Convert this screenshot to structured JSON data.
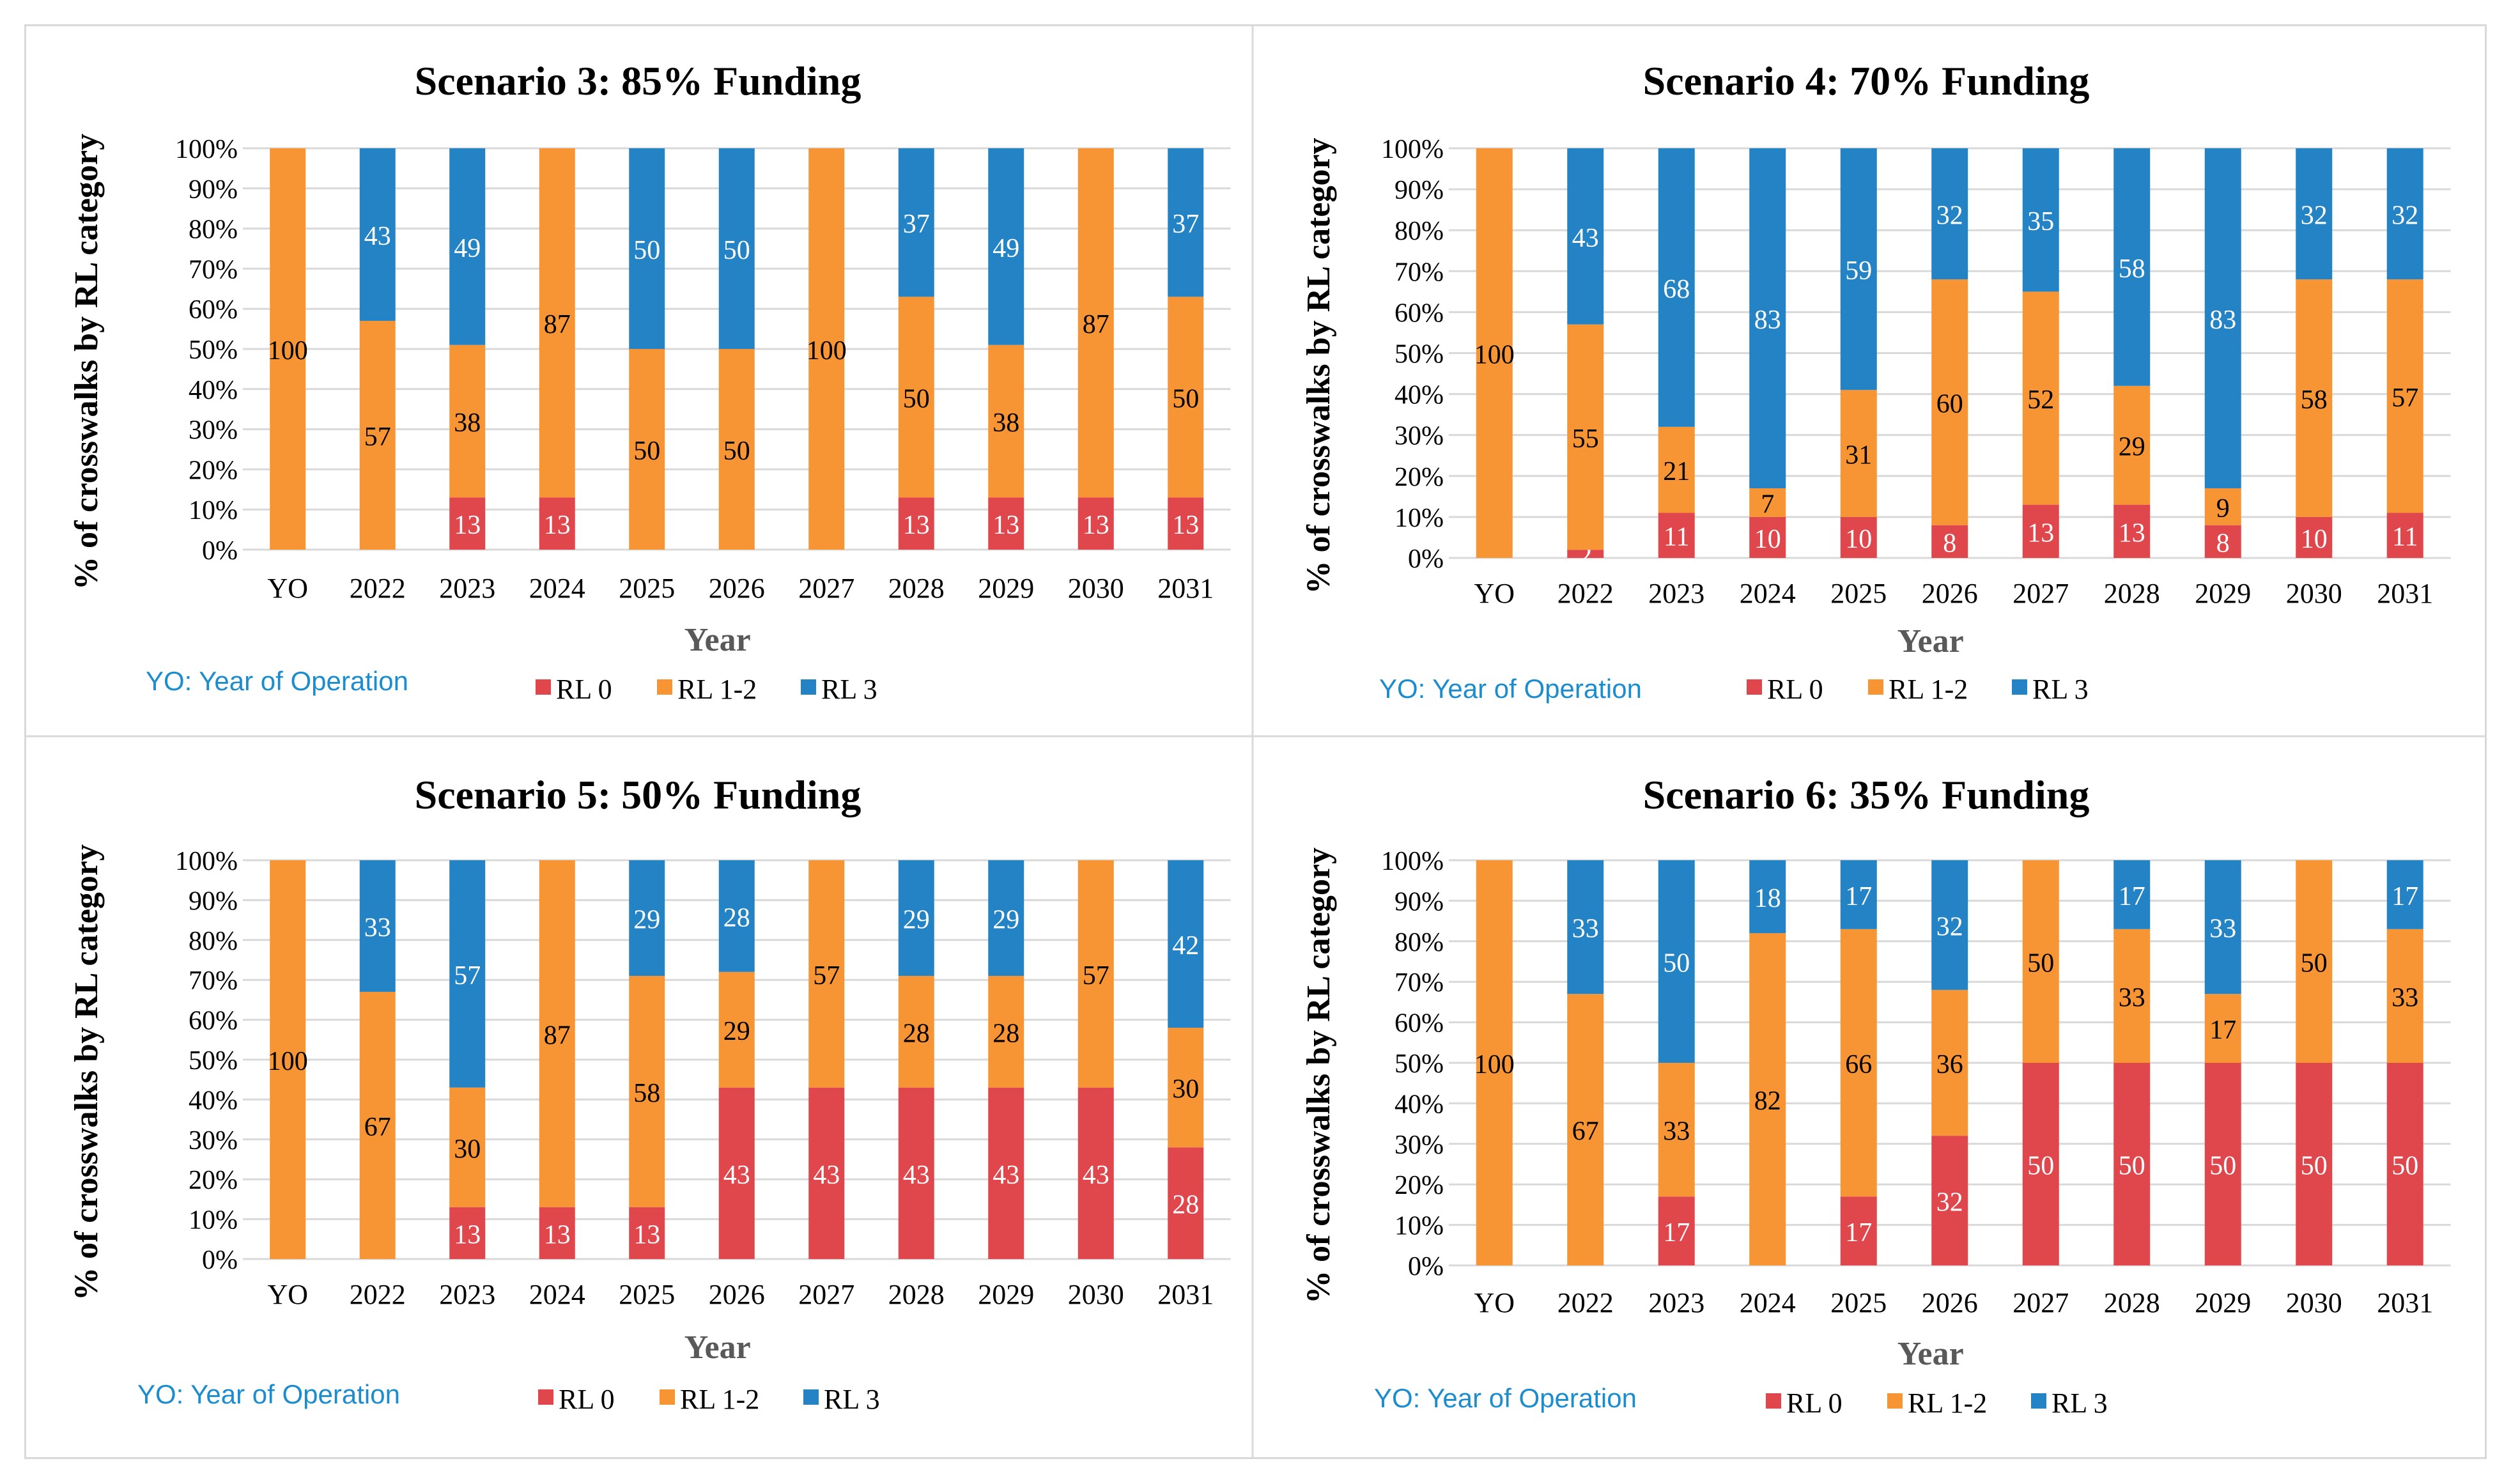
{
  "colors": {
    "rl0": "#E0474C",
    "rl12": "#F79433",
    "rl3": "#2383C5",
    "note": "#1B8DCE",
    "grid": "#D9D9D9",
    "text": "#000000"
  },
  "chart_data": [
    {
      "type": "bar",
      "stacked": true,
      "title": "Scenario 3: 85% Funding",
      "xlabel": "Year",
      "ylabel": "% of crosswalks by RL category",
      "ylim": [
        0,
        100
      ],
      "yticks": [
        "0%",
        "10%",
        "20%",
        "30%",
        "40%",
        "50%",
        "60%",
        "70%",
        "80%",
        "90%",
        "100%"
      ],
      "categories": [
        "YO",
        "2022",
        "2023",
        "2024",
        "2025",
        "2026",
        "2027",
        "2028",
        "2029",
        "2030",
        "2031"
      ],
      "series": [
        {
          "name": "RL 0",
          "values": [
            0,
            0,
            13,
            13,
            0,
            0,
            0,
            13,
            13,
            13,
            13
          ]
        },
        {
          "name": "RL 1-2",
          "values": [
            100,
            57,
            38,
            87,
            50,
            50,
            100,
            50,
            38,
            87,
            50
          ]
        },
        {
          "name": "RL 3",
          "values": [
            0,
            43,
            49,
            0,
            50,
            50,
            0,
            37,
            49,
            0,
            37
          ]
        }
      ],
      "note": "YO: Year of Operation",
      "legend": [
        "RL 0",
        "RL 1-2",
        "RL 3"
      ]
    },
    {
      "type": "bar",
      "stacked": true,
      "title": "Scenario 4: 70% Funding",
      "xlabel": "Year",
      "ylabel": "% of crosswalks by RL category",
      "ylim": [
        0,
        100
      ],
      "yticks": [
        "0%",
        "10%",
        "20%",
        "30%",
        "40%",
        "50%",
        "60%",
        "70%",
        "80%",
        "90%",
        "100%"
      ],
      "categories": [
        "YO",
        "2022",
        "2023",
        "2024",
        "2025",
        "2026",
        "2027",
        "2028",
        "2029",
        "2030",
        "2031"
      ],
      "series": [
        {
          "name": "RL 0",
          "values": [
            0,
            2,
            11,
            10,
            10,
            8,
            13,
            13,
            8,
            10,
            11
          ]
        },
        {
          "name": "RL 1-2",
          "values": [
            100,
            55,
            21,
            7,
            31,
            60,
            52,
            29,
            9,
            58,
            57
          ]
        },
        {
          "name": "RL 3",
          "values": [
            0,
            43,
            68,
            83,
            59,
            32,
            35,
            58,
            83,
            32,
            32
          ]
        }
      ],
      "note": "YO: Year of Operation",
      "legend": [
        "RL 0",
        "RL 1-2",
        "RL 3"
      ]
    },
    {
      "type": "bar",
      "stacked": true,
      "title": "Scenario 5: 50% Funding",
      "xlabel": "Year",
      "ylabel": "% of crosswalks by RL category",
      "ylim": [
        0,
        100
      ],
      "yticks": [
        "0%",
        "10%",
        "20%",
        "30%",
        "40%",
        "50%",
        "60%",
        "70%",
        "80%",
        "90%",
        "100%"
      ],
      "categories": [
        "YO",
        "2022",
        "2023",
        "2024",
        "2025",
        "2026",
        "2027",
        "2028",
        "2029",
        "2030",
        "2031"
      ],
      "series": [
        {
          "name": "RL 0",
          "values": [
            0,
            0,
            13,
            13,
            13,
            43,
            43,
            43,
            43,
            43,
            28
          ]
        },
        {
          "name": "RL 1-2",
          "values": [
            100,
            67,
            30,
            87,
            58,
            29,
            57,
            28,
            28,
            57,
            30
          ]
        },
        {
          "name": "RL 3",
          "values": [
            0,
            33,
            57,
            0,
            29,
            28,
            0,
            29,
            29,
            0,
            42
          ]
        }
      ],
      "note": "YO: Year of Operation",
      "legend": [
        "RL 0",
        "RL 1-2",
        "RL 3"
      ]
    },
    {
      "type": "bar",
      "stacked": true,
      "title": "Scenario 6: 35% Funding",
      "xlabel": "Year",
      "ylabel": "% of crosswalks by RL category",
      "ylim": [
        0,
        100
      ],
      "yticks": [
        "0%",
        "10%",
        "20%",
        "30%",
        "40%",
        "50%",
        "60%",
        "70%",
        "80%",
        "90%",
        "100%"
      ],
      "categories": [
        "YO",
        "2022",
        "2023",
        "2024",
        "2025",
        "2026",
        "2027",
        "2028",
        "2029",
        "2030",
        "2031"
      ],
      "series": [
        {
          "name": "RL 0",
          "values": [
            0,
            0,
            17,
            0,
            17,
            32,
            50,
            50,
            50,
            50,
            50
          ]
        },
        {
          "name": "RL 1-2",
          "values": [
            100,
            67,
            33,
            82,
            66,
            36,
            50,
            33,
            17,
            50,
            33
          ]
        },
        {
          "name": "RL 3",
          "values": [
            0,
            33,
            50,
            18,
            17,
            32,
            0,
            17,
            33,
            0,
            17
          ]
        }
      ],
      "note": "YO: Year of Operation",
      "legend": [
        "RL 0",
        "RL 1-2",
        "RL 3"
      ]
    }
  ]
}
